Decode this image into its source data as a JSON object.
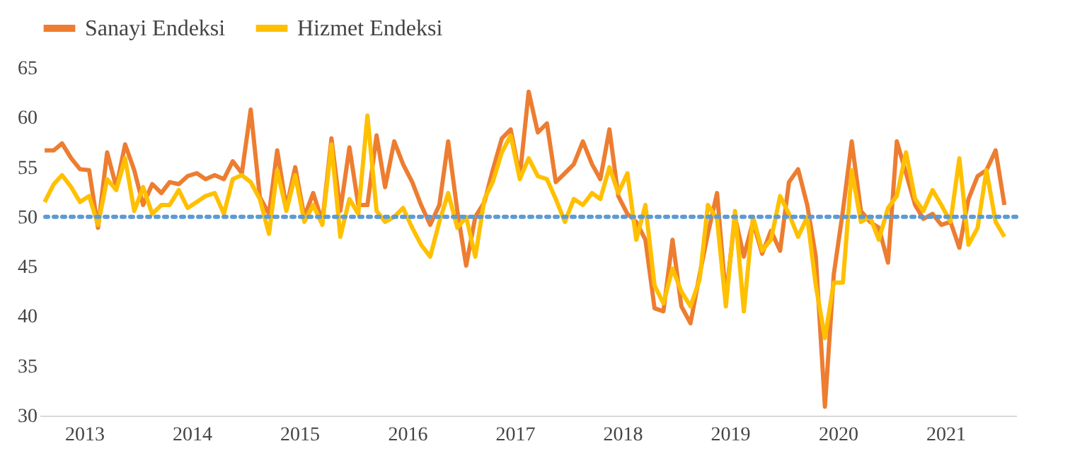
{
  "chart_data": {
    "type": "line",
    "x": [
      "2013-01",
      "2013-02",
      "2013-03",
      "2013-04",
      "2013-05",
      "2013-06",
      "2013-07",
      "2013-08",
      "2013-09",
      "2013-10",
      "2013-11",
      "2013-12",
      "2014-01",
      "2014-02",
      "2014-03",
      "2014-04",
      "2014-05",
      "2014-06",
      "2014-07",
      "2014-08",
      "2014-09",
      "2014-10",
      "2014-11",
      "2014-12",
      "2015-01",
      "2015-02",
      "2015-03",
      "2015-04",
      "2015-05",
      "2015-06",
      "2015-07",
      "2015-08",
      "2015-09",
      "2015-10",
      "2015-11",
      "2015-12",
      "2016-01",
      "2016-02",
      "2016-03",
      "2016-04",
      "2016-05",
      "2016-06",
      "2016-07",
      "2016-08",
      "2016-09",
      "2016-10",
      "2016-11",
      "2016-12",
      "2017-01",
      "2017-02",
      "2017-03",
      "2017-04",
      "2017-05",
      "2017-06",
      "2017-07",
      "2017-08",
      "2017-09",
      "2017-10",
      "2017-11",
      "2017-12",
      "2018-01",
      "2018-02",
      "2018-03",
      "2018-04",
      "2018-05",
      "2018-06",
      "2018-07",
      "2018-08",
      "2018-09",
      "2018-10",
      "2018-11",
      "2018-12",
      "2019-01",
      "2019-02",
      "2019-03",
      "2019-04",
      "2019-05",
      "2019-06",
      "2019-07",
      "2019-08",
      "2019-09",
      "2019-10",
      "2019-11",
      "2019-12",
      "2020-01",
      "2020-02",
      "2020-03",
      "2020-04",
      "2020-05",
      "2020-06",
      "2020-07",
      "2020-08",
      "2020-09",
      "2020-10",
      "2020-11",
      "2020-12",
      "2021-01",
      "2021-02",
      "2021-03",
      "2021-04",
      "2021-05",
      "2021-06",
      "2021-07",
      "2021-08",
      "2021-09",
      "2021-10",
      "2021-11",
      "2021-12"
    ],
    "series": [
      {
        "name": "Sanayi Endeksi",
        "color": "#ed7d31",
        "values": [
          56.7,
          56.7,
          57.4,
          55.9,
          54.8,
          54.7,
          48.9,
          56.5,
          53,
          57.3,
          54.7,
          51.2,
          53.3,
          52.4,
          53.5,
          53.3,
          54.1,
          54.4,
          53.8,
          54.2,
          53.8,
          55.6,
          54.4,
          60.8,
          52,
          50.3,
          56.7,
          50.9,
          55,
          50,
          52.4,
          49.5,
          57.9,
          50.6,
          57,
          51.2,
          51.2,
          58.2,
          53,
          57.6,
          55.3,
          53.5,
          51.2,
          49.2,
          51.2,
          57.6,
          50.6,
          45.1,
          50,
          51.5,
          54.7,
          57.9,
          58.8,
          54.1,
          62.6,
          58.5,
          59.4,
          53.5,
          54.4,
          55.3,
          57.6,
          55.3,
          53.8,
          58.8,
          52.1,
          50.3,
          49.5,
          47.7,
          40.8,
          40.5,
          47.7,
          41,
          39.3,
          44.2,
          48.3,
          52.4,
          41.9,
          50,
          46,
          49.5,
          46.3,
          48.6,
          46.6,
          53.5,
          54.8,
          51.2,
          46,
          30.9,
          44.2,
          50.6,
          57.6,
          50.6,
          49.5,
          48.9,
          45.4,
          57.6,
          54.4,
          51.2,
          49.8,
          50.3,
          49.2,
          49.5,
          46.9,
          51.8,
          54.1,
          54.7,
          56.7,
          51.2
        ]
      },
      {
        "name": "Hizmet Endeksi",
        "color": "#ffc000",
        "values": [
          51.5,
          53.3,
          54.2,
          53,
          51.5,
          52.1,
          49.2,
          53.8,
          52.7,
          55.9,
          50.6,
          53,
          50.3,
          51.2,
          51.2,
          52.7,
          50.9,
          51.5,
          52.1,
          52.4,
          50.3,
          53.8,
          54.2,
          53.5,
          51.8,
          48.3,
          54.7,
          50.6,
          54.2,
          49.5,
          51.2,
          49.2,
          57.3,
          48,
          51.8,
          50.3,
          60.2,
          50.6,
          49.5,
          50,
          50.9,
          48.9,
          47.2,
          46,
          49.5,
          52.4,
          48.9,
          50,
          46,
          51.8,
          53.5,
          56.5,
          58.2,
          53.8,
          55.9,
          54.1,
          53.8,
          51.8,
          49.5,
          51.8,
          51.2,
          52.4,
          51.8,
          55,
          52.4,
          54.4,
          47.7,
          51.2,
          43.1,
          41.3,
          44.8,
          42.5,
          41,
          43.7,
          51.2,
          49.8,
          41,
          50.6,
          40.5,
          50,
          46.6,
          47.7,
          52.1,
          50.3,
          48,
          50,
          43.1,
          37.8,
          43.4,
          43.4,
          54.7,
          49.5,
          50,
          47.7,
          50.9,
          52.1,
          56.5,
          51.8,
          50.6,
          52.7,
          51.2,
          49.5,
          55.9,
          47.2,
          48.9,
          54.7,
          49.5,
          48
        ]
      }
    ],
    "xticks": [
      {
        "value": "2013-05-15",
        "label": "2013"
      },
      {
        "value": "2014-05-15",
        "label": "2014"
      },
      {
        "value": "2015-05-15",
        "label": "2015"
      },
      {
        "value": "2016-05-15",
        "label": "2016"
      },
      {
        "value": "2017-05-15",
        "label": "2017"
      },
      {
        "value": "2018-05-15",
        "label": "2018"
      },
      {
        "value": "2019-05-15",
        "label": "2019"
      },
      {
        "value": "2020-05-15",
        "label": "2020"
      },
      {
        "value": "2021-05-15",
        "label": "2021"
      }
    ],
    "xlim": [
      "2012-12-15",
      "2022-01-10"
    ],
    "ylim": [
      30,
      65
    ],
    "yticks": [
      30,
      35,
      40,
      45,
      50,
      55,
      60,
      65
    ],
    "ref_lines": [
      {
        "axis": "y",
        "value": 50,
        "color": "#5b9bd5",
        "line_style": "dotted"
      }
    ],
    "legend": "top",
    "grid": false,
    "marker": "none",
    "line_style": "solid"
  }
}
